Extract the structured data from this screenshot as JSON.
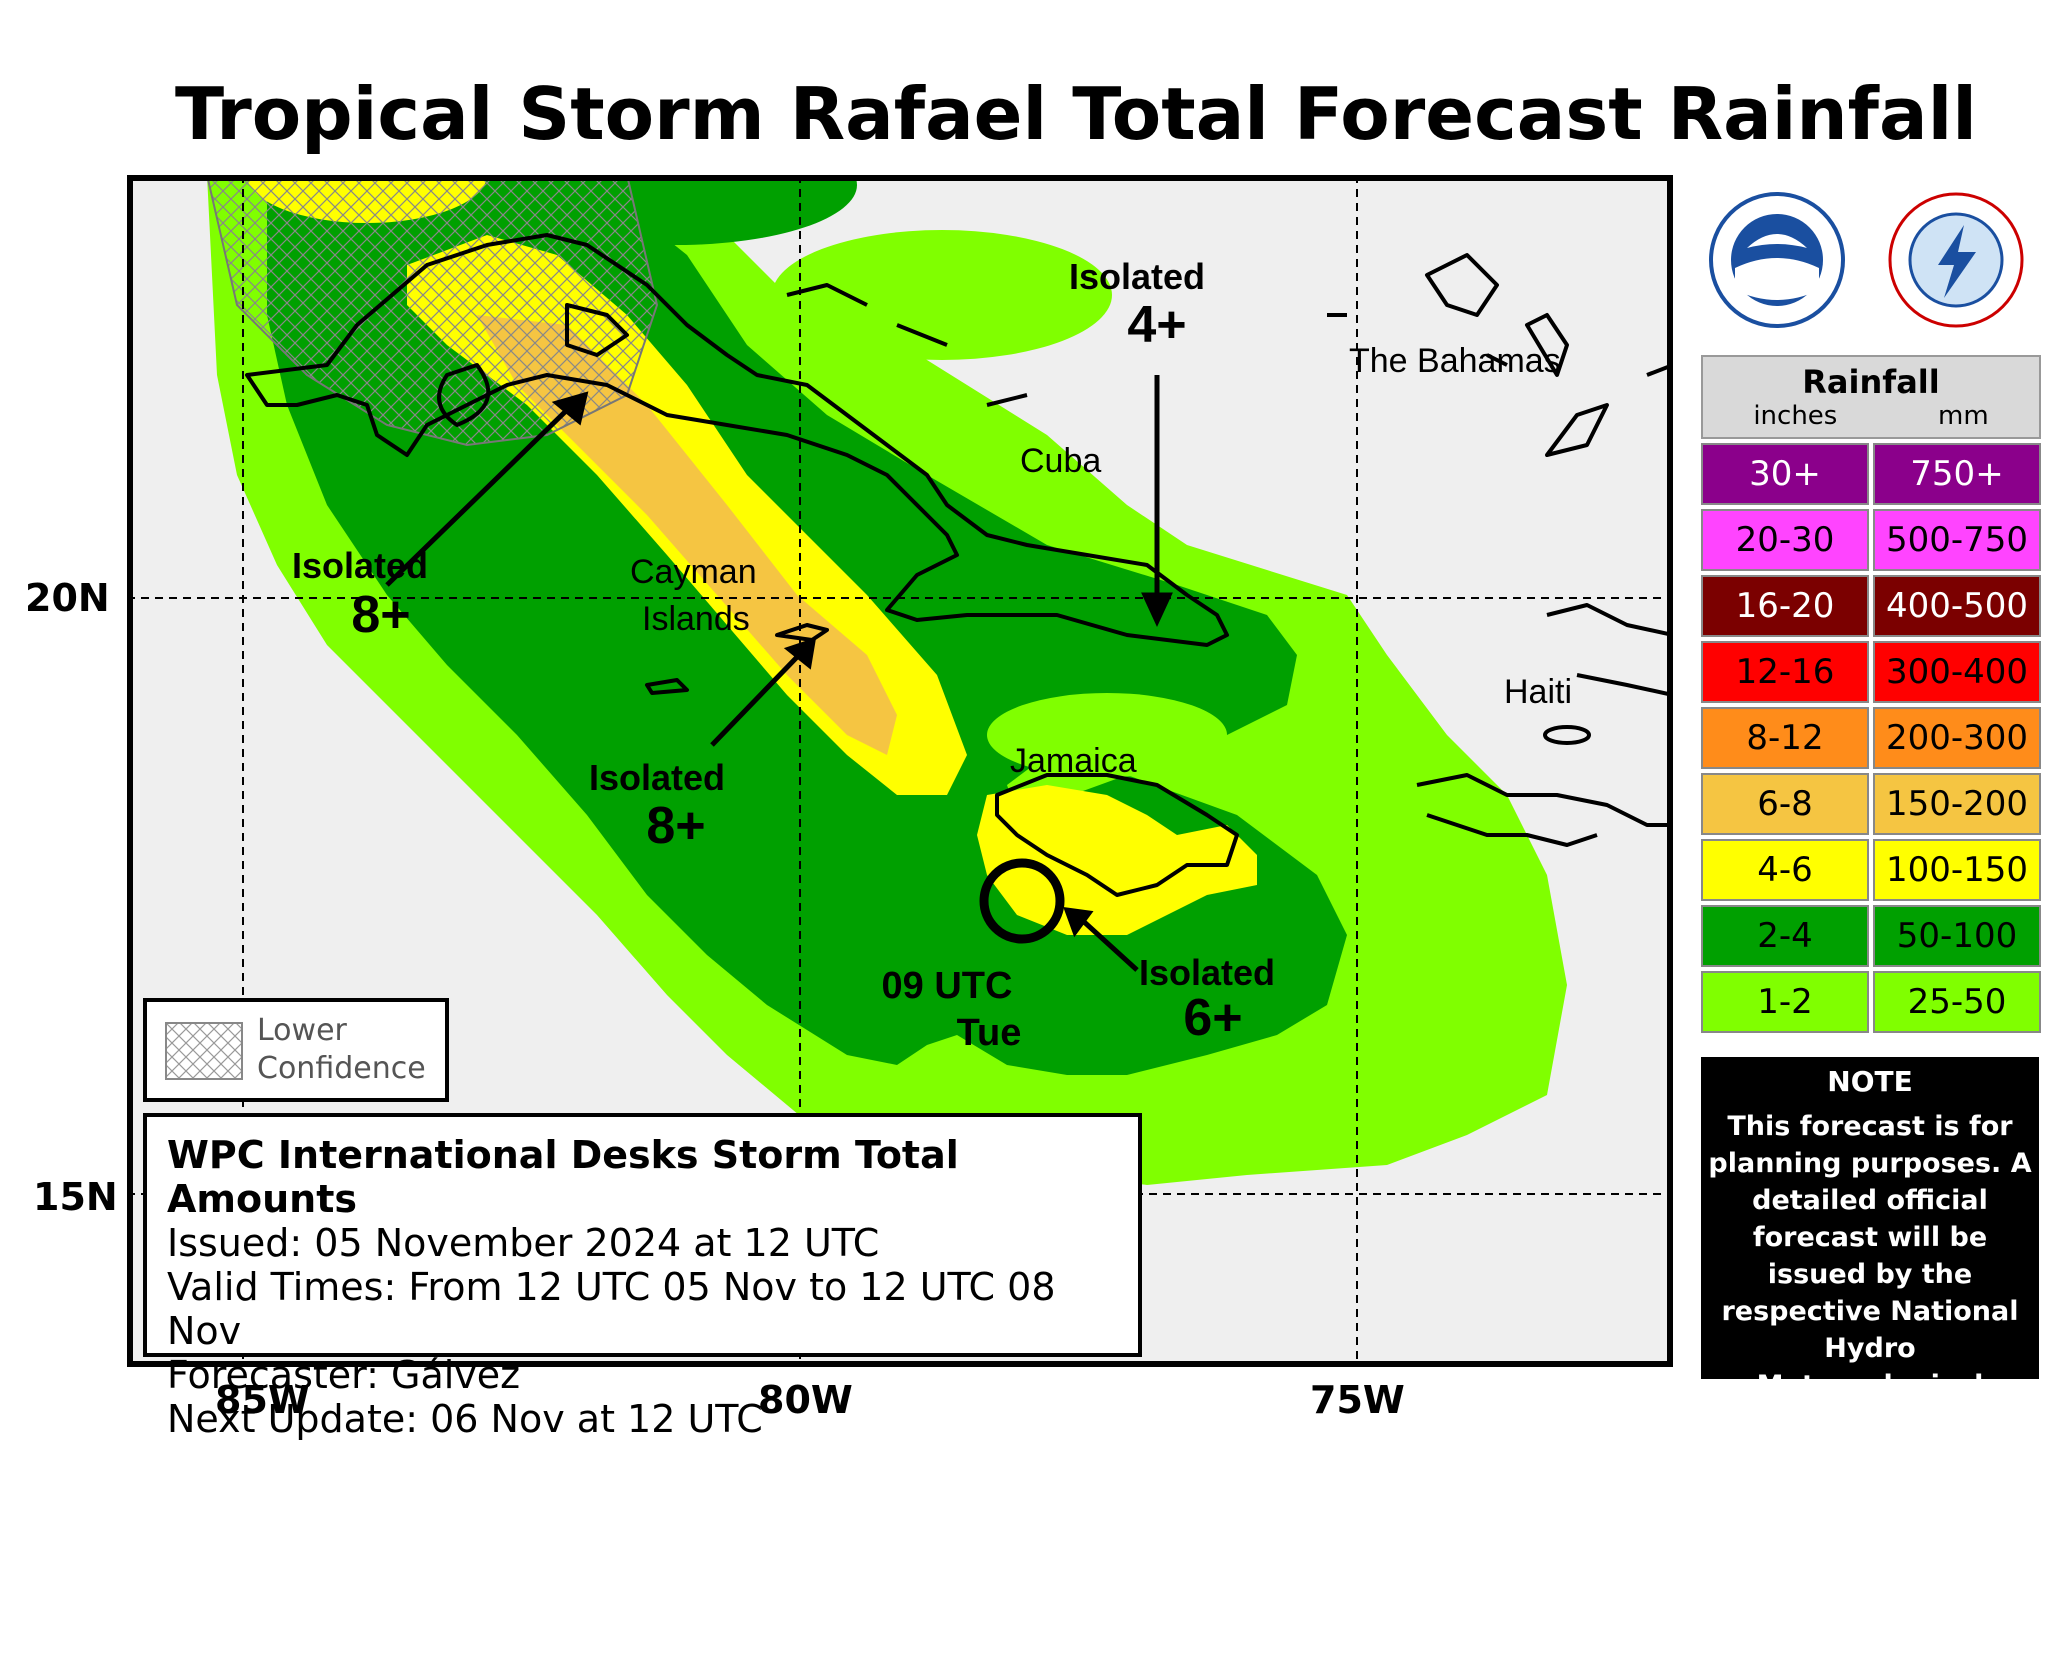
{
  "title": "Tropical Storm Rafael Total Forecast Rainfall",
  "axes": {
    "lon_labels": [
      "85W",
      "80W",
      "75W"
    ],
    "lat_labels": [
      "20N",
      "15N"
    ]
  },
  "places": {
    "bahamas": "The Bahamas",
    "cuba": "Cuba",
    "cayman_1": "Cayman",
    "cayman_2": "Islands",
    "haiti": "Haiti",
    "jamaica": "Jamaica"
  },
  "annotations": [
    {
      "word": "Isolated",
      "value": "4+"
    },
    {
      "word": "Isolated",
      "value": "8+"
    },
    {
      "word": "Isolated",
      "value": "8+"
    },
    {
      "word": "Isolated",
      "value": "6+"
    }
  ],
  "storm_position": {
    "line1": "09 UTC",
    "line2": "Tue"
  },
  "low_confidence": {
    "line1": "Lower",
    "line2": "Confidence"
  },
  "info_box": {
    "heading": "WPC International Desks Storm Total Amounts",
    "issued": "Issued:  05 November 2024 at 12 UTC",
    "valid": "Valid Times:  From 12 UTC 05 Nov to 12 UTC 08 Nov",
    "forecaster": "Forecaster: Gálvez",
    "next_update": "Next Update: 06 Nov at 12 UTC"
  },
  "legend": {
    "title": "Rainfall",
    "unit_inches": "inches",
    "unit_mm": "mm",
    "rows": [
      {
        "inches": "30+",
        "mm": "750+",
        "color": "#8b008b",
        "text_color": "#ffffff"
      },
      {
        "inches": "20-30",
        "mm": "500-750",
        "color": "#ff44ff",
        "text_color": "#000000"
      },
      {
        "inches": "16-20",
        "mm": "400-500",
        "color": "#7b0000",
        "text_color": "#ffffff"
      },
      {
        "inches": "12-16",
        "mm": "300-400",
        "color": "#ff0000",
        "text_color": "#000000"
      },
      {
        "inches": "8-12",
        "mm": "200-300",
        "color": "#ff8c1a",
        "text_color": "#000000"
      },
      {
        "inches": "6-8",
        "mm": "150-200",
        "color": "#f5c542",
        "text_color": "#000000"
      },
      {
        "inches": "4-6",
        "mm": "100-150",
        "color": "#ffff00",
        "text_color": "#000000"
      },
      {
        "inches": "2-4",
        "mm": "50-100",
        "color": "#00a000",
        "text_color": "#000000"
      },
      {
        "inches": "1-2",
        "mm": "25-50",
        "color": "#80ff00",
        "text_color": "#000000"
      }
    ]
  },
  "note": {
    "heading": "NOTE",
    "body": "This forecast is for planning purposes. A detailed official forecast will be issued by the respective National Hydro Meteorological Service."
  },
  "logos": {
    "noaa": "noaa-logo",
    "nws": "nws-logo"
  }
}
